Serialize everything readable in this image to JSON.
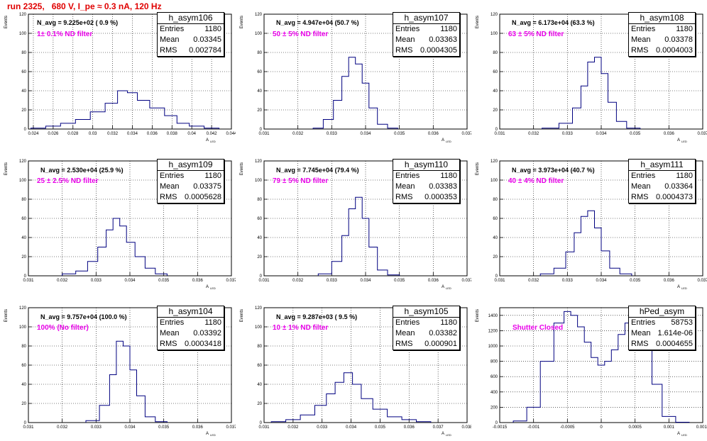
{
  "run_title": "run 2325,   680 V, I_pe ≈ 0.3 nA, 120 Hz",
  "labels": {
    "entries": "Entries",
    "mean": "Mean",
    "rms": "RMS",
    "ylabel": "Events",
    "xlabel": "A",
    "xlabel_sub": "LED"
  },
  "colors": {
    "hist": "#000080",
    "title": "#e00000",
    "annotation": "#e800e8"
  },
  "chart_data": [
    {
      "type": "histogram",
      "name": "h_asym106",
      "entries": "1180",
      "mean": "0.03345",
      "rms": "0.002784",
      "navg": "N_avg = 9.225e+02 ( 0.9 %)",
      "note": "1± 0.1% ND filter",
      "xlim": [
        0.0235,
        0.044
      ],
      "ylim": [
        0,
        120
      ],
      "yticks": [
        0,
        20,
        40,
        60,
        80,
        100,
        120
      ],
      "xticks": [
        "0.024",
        "0.026",
        "0.028",
        "0.03",
        "0.032",
        "0.034",
        "0.036",
        "0.038",
        "0.04",
        "0.042",
        "0.044"
      ],
      "x": [
        0.0245,
        0.026,
        0.0275,
        0.029,
        0.0305,
        0.032,
        0.033,
        0.034,
        0.035,
        0.0365,
        0.038,
        0.039,
        0.0405,
        0.042
      ],
      "y": [
        1,
        3,
        6,
        10,
        18,
        27,
        40,
        38,
        30,
        22,
        14,
        6,
        3,
        1
      ]
    },
    {
      "type": "histogram",
      "name": "h_asym107",
      "entries": "1180",
      "mean": "0.03363",
      "rms": "0.0004305",
      "navg": "N_avg = 4.947e+04 (50.7 %)",
      "note": "50 ± 5% ND filter",
      "xlim": [
        0.031,
        0.037
      ],
      "ylim": [
        0,
        120
      ],
      "yticks": [
        0,
        20,
        40,
        60,
        80,
        100,
        120
      ],
      "xticks": [
        "0.031",
        "0.032",
        "0.033",
        "0.034",
        "0.035",
        "0.036",
        "0.037"
      ],
      "x": [
        0.0326,
        0.0329,
        0.0332,
        0.0334,
        0.0336,
        0.0338,
        0.034,
        0.0342,
        0.0345,
        0.0348
      ],
      "y": [
        1,
        10,
        30,
        55,
        75,
        68,
        48,
        22,
        5,
        1
      ]
    },
    {
      "type": "histogram",
      "name": "h_asym108",
      "entries": "1180",
      "mean": "0.03378",
      "rms": "0.0004003",
      "navg": "N_avg = 6.173e+04 (63.3 %)",
      "note": "63 ± 5% ND filter",
      "xlim": [
        0.031,
        0.037
      ],
      "ylim": [
        0,
        120
      ],
      "yticks": [
        0,
        20,
        40,
        60,
        80,
        100,
        120
      ],
      "xticks": [
        "0.031",
        "0.032",
        "0.033",
        "0.034",
        "0.035",
        "0.036",
        "0.037"
      ],
      "x": [
        0.0325,
        0.033,
        0.0333,
        0.0335,
        0.0337,
        0.0339,
        0.0341,
        0.0343,
        0.0346,
        0.0349
      ],
      "y": [
        1,
        6,
        22,
        45,
        70,
        75,
        58,
        28,
        8,
        1
      ]
    },
    {
      "type": "histogram",
      "name": "h_asym109",
      "entries": "1180",
      "mean": "0.03375",
      "rms": "0.0005628",
      "navg": "N_avg = 2.530e+04 (25.9 %)",
      "note": "25 ± 2.5% ND filter",
      "xlim": [
        0.031,
        0.037
      ],
      "ylim": [
        0,
        120
      ],
      "yticks": [
        0,
        20,
        40,
        60,
        80,
        100,
        120
      ],
      "xticks": [
        "0.031",
        "0.032",
        "0.033",
        "0.034",
        "0.035",
        "0.036",
        "0.037"
      ],
      "x": [
        0.0322,
        0.0326,
        0.0329,
        0.0332,
        0.0334,
        0.0336,
        0.0338,
        0.034,
        0.0343,
        0.0346,
        0.0349
      ],
      "y": [
        2,
        5,
        15,
        30,
        48,
        60,
        52,
        35,
        20,
        8,
        2
      ]
    },
    {
      "type": "histogram",
      "name": "h_asym110",
      "entries": "1180",
      "mean": "0.03383",
      "rms": "0.000353",
      "navg": "N_avg = 7.745e+04 (79.4 %)",
      "note": "79 ± 5% ND filter",
      "xlim": [
        0.031,
        0.037
      ],
      "ylim": [
        0,
        120
      ],
      "yticks": [
        0,
        20,
        40,
        60,
        80,
        100,
        120
      ],
      "xticks": [
        "0.031",
        "0.032",
        "0.033",
        "0.034",
        "0.035",
        "0.036",
        "0.037"
      ],
      "x": [
        0.0328,
        0.0332,
        0.0334,
        0.0336,
        0.0338,
        0.034,
        0.0342,
        0.0345,
        0.0348
      ],
      "y": [
        2,
        15,
        42,
        70,
        82,
        60,
        30,
        6,
        1
      ]
    },
    {
      "type": "histogram",
      "name": "h_asym111",
      "entries": "1180",
      "mean": "0.03364",
      "rms": "0.0004373",
      "navg": "N_avg = 3.973e+04 (40.7 %)",
      "note": "40 ± 4% ND filter",
      "xlim": [
        0.031,
        0.037
      ],
      "ylim": [
        0,
        120
      ],
      "yticks": [
        0,
        20,
        40,
        60,
        80,
        100,
        120
      ],
      "xticks": [
        "0.031",
        "0.032",
        "0.033",
        "0.034",
        "0.035",
        "0.036",
        "0.037"
      ],
      "x": [
        0.0324,
        0.0328,
        0.0331,
        0.0333,
        0.0335,
        0.0337,
        0.0339,
        0.0341,
        0.0344,
        0.0347
      ],
      "y": [
        2,
        8,
        25,
        45,
        62,
        68,
        50,
        26,
        8,
        2
      ]
    },
    {
      "type": "histogram",
      "name": "h_asym104",
      "entries": "1180",
      "mean": "0.03392",
      "rms": "0.0003418",
      "navg": "N_avg = 9.757e+04 (100.0 %)",
      "note": "100% (No filter)",
      "xlim": [
        0.031,
        0.037
      ],
      "ylim": [
        0,
        120
      ],
      "yticks": [
        0,
        20,
        40,
        60,
        80,
        100,
        120
      ],
      "xticks": [
        "0.031",
        "0.032",
        "0.033",
        "0.034",
        "0.035",
        "0.036",
        "0.037"
      ],
      "x": [
        0.0329,
        0.0333,
        0.0335,
        0.0337,
        0.0339,
        0.0341,
        0.0343,
        0.0346,
        0.0349
      ],
      "y": [
        2,
        18,
        50,
        85,
        80,
        55,
        28,
        6,
        1
      ]
    },
    {
      "type": "histogram",
      "name": "h_asym105",
      "entries": "1180",
      "mean": "0.03382",
      "rms": "0.000901",
      "navg": "N_avg = 9.287e+03 ( 9.5 %)",
      "note": "10 ± 1% ND filter",
      "xlim": [
        0.031,
        0.038
      ],
      "ylim": [
        0,
        120
      ],
      "yticks": [
        0,
        20,
        40,
        60,
        80,
        100,
        120
      ],
      "xticks": [
        "0.031",
        "0.032",
        "0.033",
        "0.034",
        "0.035",
        "0.036",
        "0.037",
        "0.038"
      ],
      "x": [
        0.0315,
        0.032,
        0.0325,
        0.033,
        0.0333,
        0.0336,
        0.0339,
        0.0342,
        0.0345,
        0.035,
        0.0355,
        0.036,
        0.0365
      ],
      "y": [
        1,
        3,
        8,
        18,
        30,
        42,
        52,
        40,
        25,
        14,
        6,
        3,
        1
      ]
    },
    {
      "type": "histogram",
      "name": "hPed_asym",
      "entries": "58753",
      "mean": "1.614e-06",
      "rms": "0.0004655",
      "navg": "",
      "note": "Shutter Closed",
      "xlim": [
        -0.0015,
        0.0015
      ],
      "ylim": [
        0,
        1500
      ],
      "yticks": [
        0,
        200,
        400,
        600,
        800,
        1000,
        1200,
        1400
      ],
      "xticks": [
        "-0.0015",
        "-0.001",
        "-0.0005",
        "0",
        "0.0005",
        "0.001",
        "0.0015"
      ],
      "x": [
        -0.0012,
        -0.001,
        -0.0008,
        -0.0006,
        -0.0005,
        -0.0004,
        -0.0003,
        -0.0002,
        -0.0001,
        0,
        0.0001,
        0.0002,
        0.0003,
        0.0004,
        0.0005,
        0.0006,
        0.0007,
        0.0008,
        0.001,
        0.0012
      ],
      "y": [
        20,
        200,
        800,
        1300,
        1450,
        1400,
        1250,
        1050,
        850,
        750,
        800,
        950,
        1150,
        1300,
        1400,
        1300,
        1000,
        500,
        80,
        5
      ]
    }
  ]
}
